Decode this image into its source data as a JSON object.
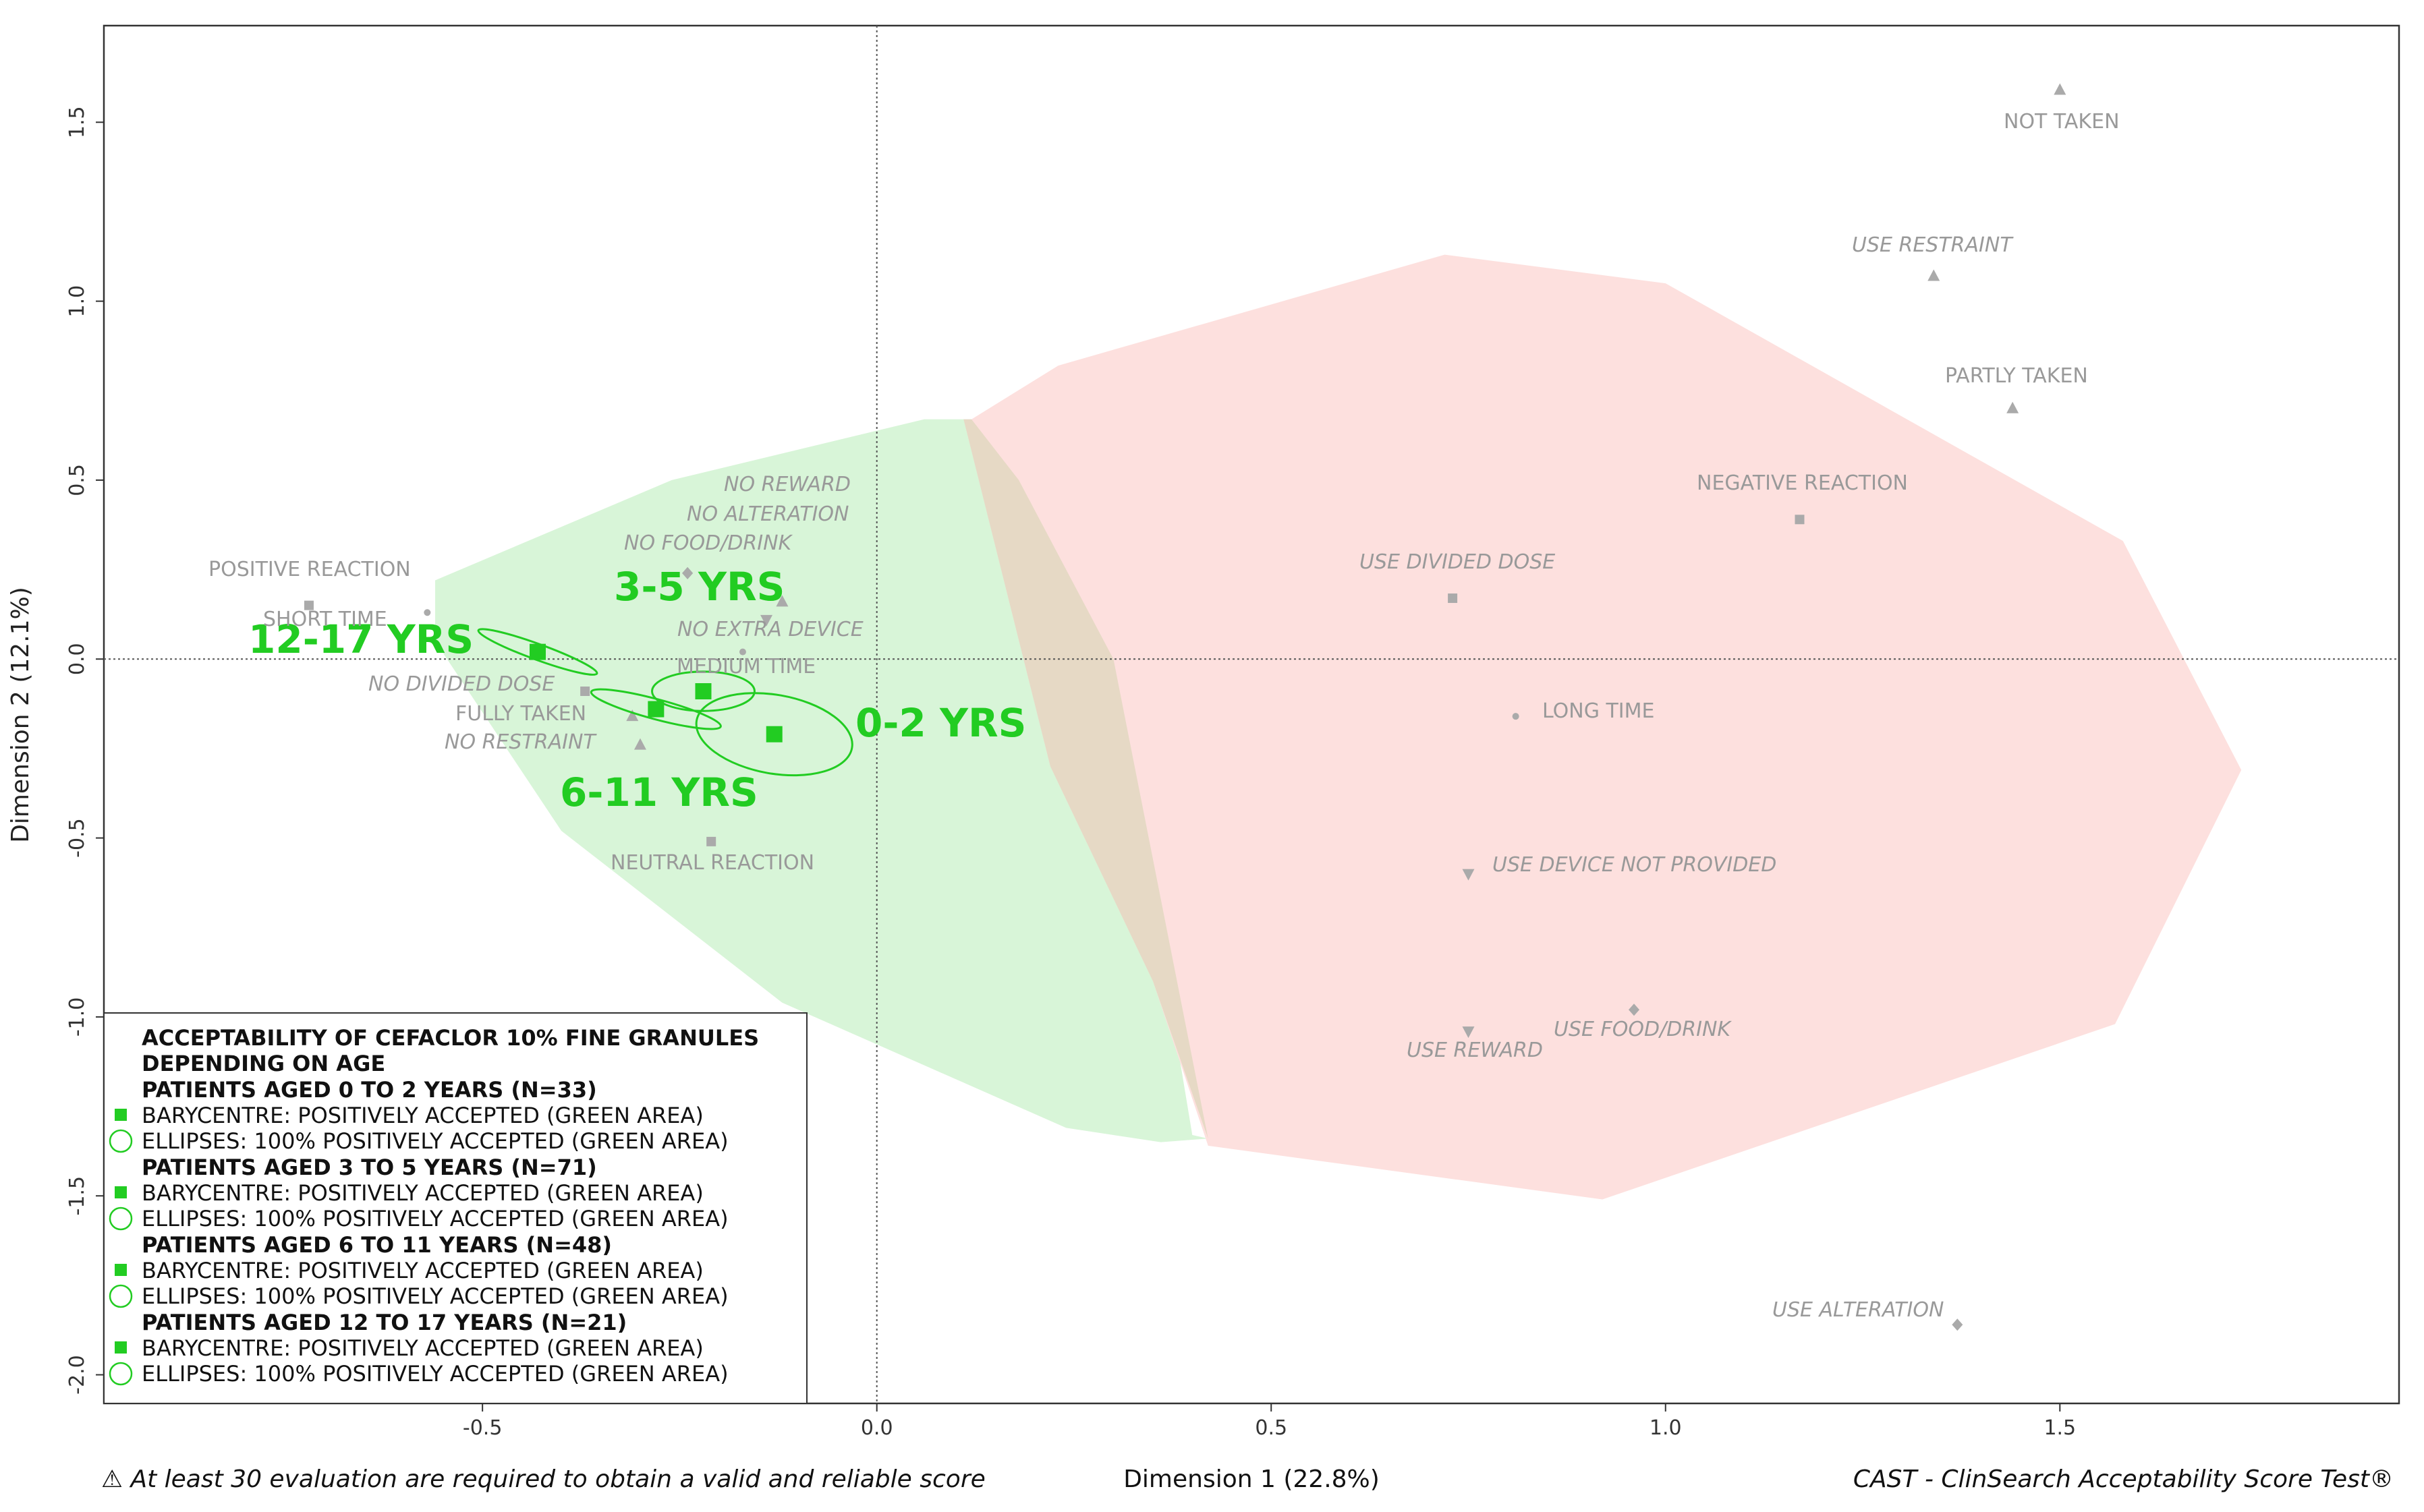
{
  "chart_data": {
    "type": "scatter",
    "title": "",
    "xlabel": "Dimension 1 (22.8%)",
    "ylabel": "Dimension 2 (12.1%)",
    "xlim": [
      -0.98,
      1.93
    ],
    "ylim": [
      -2.08,
      1.77
    ],
    "xticks": [
      -0.5,
      0.0,
      0.5,
      1.0,
      1.5
    ],
    "xtick_labels": [
      "-0.5",
      "0.0",
      "0.5",
      "1.0",
      "1.5"
    ],
    "yticks": [
      -2.0,
      -1.5,
      -1.0,
      -0.5,
      0.0,
      0.5,
      1.0,
      1.5
    ],
    "ytick_labels": [
      "-2.0",
      "-1.5",
      "-1.0",
      "-0.5",
      "0.0",
      "0.5",
      "1.0",
      "1.5"
    ],
    "reference_lines": {
      "x": 0,
      "y": 0
    },
    "areas": [
      {
        "name": "green-area",
        "color": "#d8f5d8",
        "polygon": [
          [
            -0.56,
            0.22
          ],
          [
            -0.26,
            0.5
          ],
          [
            0.06,
            0.67
          ],
          [
            0.12,
            0.67
          ],
          [
            0.18,
            0.5
          ],
          [
            0.3,
            0.0
          ],
          [
            0.4,
            -1.33
          ],
          [
            0.42,
            -1.34
          ],
          [
            0.36,
            -1.35
          ],
          [
            0.24,
            -1.31
          ],
          [
            -0.12,
            -0.96
          ],
          [
            -0.4,
            -0.48
          ],
          [
            -0.56,
            0.05
          ]
        ]
      },
      {
        "name": "red-area",
        "color": "#fde0de",
        "polygon": [
          [
            0.12,
            0.67
          ],
          [
            0.23,
            0.82
          ],
          [
            0.72,
            1.13
          ],
          [
            1.0,
            1.05
          ],
          [
            1.58,
            0.33
          ],
          [
            1.73,
            -0.31
          ],
          [
            1.57,
            -1.02
          ],
          [
            0.92,
            -1.51
          ],
          [
            0.42,
            -1.36
          ],
          [
            0.35,
            -0.9
          ],
          [
            0.22,
            -0.3
          ],
          [
            0.11,
            0.67
          ]
        ]
      }
    ],
    "variables": [
      {
        "label": "NOT TAKEN",
        "x": 1.5,
        "y": 1.59,
        "marker": "triangle-up",
        "italic": false
      },
      {
        "label": "USE RESTRAINT",
        "x": 1.34,
        "y": 1.07,
        "marker": "triangle-up",
        "italic": true
      },
      {
        "label": "PARTLY TAKEN",
        "x": 1.44,
        "y": 0.7,
        "marker": "triangle-up",
        "italic": false
      },
      {
        "label": "NEGATIVE REACTION",
        "x": 1.17,
        "y": 0.39,
        "marker": "square",
        "italic": false
      },
      {
        "label": "USE DIVIDED DOSE",
        "x": 0.73,
        "y": 0.17,
        "marker": "square",
        "italic": true
      },
      {
        "label": "LONG TIME",
        "x": 0.81,
        "y": -0.16,
        "marker": "dot",
        "italic": false
      },
      {
        "label": "USE DEVICE NOT PROVIDED",
        "x": 0.75,
        "y": -0.6,
        "marker": "triangle-down",
        "italic": true
      },
      {
        "label": "USE REWARD",
        "x": 0.75,
        "y": -1.04,
        "marker": "triangle-down",
        "italic": true
      },
      {
        "label": "USE FOOD/DRINK",
        "x": 0.96,
        "y": -0.98,
        "marker": "diamond",
        "italic": true
      },
      {
        "label": "USE ALTERATION",
        "x": 1.37,
        "y": -1.86,
        "marker": "diamond",
        "italic": true
      },
      {
        "label": "POSITIVE REACTION",
        "x": -0.72,
        "y": 0.15,
        "marker": "square",
        "italic": false
      },
      {
        "label": "SHORT TIME",
        "x": -0.57,
        "y": 0.13,
        "marker": "dot",
        "italic": false
      },
      {
        "label": "NO REWARD",
        "x": -0.12,
        "y": 0.16,
        "marker": "triangle-up",
        "italic": true
      },
      {
        "label": "NO ALTERATION",
        "x": -0.24,
        "y": 0.24,
        "marker": "diamond",
        "italic": true
      },
      {
        "label": "NO FOOD/DRINK",
        "x": -0.24,
        "y": 0.24,
        "marker": "diamond",
        "italic": true
      },
      {
        "label": "NO EXTRA DEVICE",
        "x": -0.14,
        "y": 0.11,
        "marker": "triangle-down",
        "italic": true
      },
      {
        "label": "MEDIUM TIME",
        "x": -0.17,
        "y": 0.02,
        "marker": "dot",
        "italic": false
      },
      {
        "label": "NO DIVIDED DOSE",
        "x": -0.37,
        "y": -0.09,
        "marker": "square",
        "italic": true
      },
      {
        "label": "FULLY TAKEN",
        "x": -0.31,
        "y": -0.16,
        "marker": "triangle-up",
        "italic": false
      },
      {
        "label": "NO RESTRAINT",
        "x": -0.3,
        "y": -0.24,
        "marker": "triangle-up",
        "italic": true
      },
      {
        "label": "NEUTRAL REACTION",
        "x": -0.21,
        "y": -0.51,
        "marker": "square",
        "italic": false
      }
    ],
    "groups": [
      {
        "label": "0-2 YRS",
        "barycentre": [
          -0.13,
          -0.21
        ],
        "ellipse": {
          "rx": 0.1,
          "ry": 0.11,
          "angle_deg": -10
        }
      },
      {
        "label": "3-5 YRS",
        "barycentre": [
          -0.22,
          -0.09
        ],
        "ellipse": {
          "rx": 0.065,
          "ry": 0.055,
          "angle_deg": 0
        }
      },
      {
        "label": "6-11 YRS",
        "barycentre": [
          -0.28,
          -0.14
        ],
        "ellipse": {
          "rx": 0.085,
          "ry": 0.028,
          "angle_deg": -15
        }
      },
      {
        "label": "12-17 YRS",
        "barycentre": [
          -0.43,
          0.02
        ],
        "ellipse": {
          "rx": 0.08,
          "ry": 0.022,
          "angle_deg": -20
        }
      }
    ],
    "legend": {
      "position": "bottom-left",
      "title_lines": [
        "ACCEPTABILITY OF CEFACLOR 10% FINE GRANULES",
        "DEPENDING ON AGE"
      ],
      "sections": [
        {
          "heading": "PATIENTS AGED 0 TO 2 YEARS (N=33)",
          "barycentre": "BARYCENTRE: POSITIVELY ACCEPTED (GREEN AREA)",
          "ellipses": "ELLIPSES: 100% POSITIVELY ACCEPTED (GREEN AREA)"
        },
        {
          "heading": "PATIENTS AGED 3 TO 5 YEARS (N=71)",
          "barycentre": "BARYCENTRE: POSITIVELY ACCEPTED (GREEN AREA)",
          "ellipses": "ELLIPSES: 100% POSITIVELY ACCEPTED (GREEN AREA)"
        },
        {
          "heading": "PATIENTS AGED 6 TO 11 YEARS (N=48)",
          "barycentre": "BARYCENTRE: POSITIVELY ACCEPTED (GREEN AREA)",
          "ellipses": "ELLIPSES: 100% POSITIVELY ACCEPTED (GREEN AREA)"
        },
        {
          "heading": "PATIENTS AGED 12 TO 17 YEARS (N=21)",
          "barycentre": "BARYCENTRE: POSITIVELY ACCEPTED (GREEN AREA)",
          "ellipses": "ELLIPSES: 100% POSITIVELY ACCEPTED (GREEN AREA)"
        }
      ]
    }
  },
  "footer": {
    "warning": "⚠ At least 30 evaluation are required to obtain a valid and reliable score",
    "x_axis_title": "Dimension 1 (22.8%)",
    "credit": "CAST - ClinSearch Acceptability Score Test®"
  },
  "colors": {
    "group": "#22cc22",
    "marker": "#aaaaaa",
    "label": "#999999"
  }
}
